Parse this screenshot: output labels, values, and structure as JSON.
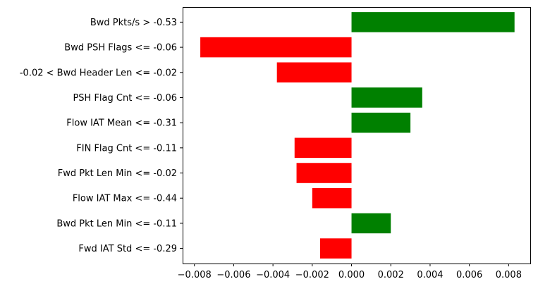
{
  "chart_data": {
    "type": "bar",
    "orientation": "horizontal",
    "categories": [
      "Bwd Pkts/s > -0.53",
      "Bwd PSH Flags <= -0.06",
      "-0.02 < Bwd Header Len <= -0.02",
      "PSH Flag Cnt <= -0.06",
      "Flow IAT Mean <= -0.31",
      "FIN Flag Cnt <= -0.11",
      "Fwd Pkt Len Min <= -0.02",
      "Flow IAT Max <= -0.44",
      "Bwd Pkt Len Min <= -0.11",
      "Fwd IAT Std <= -0.29"
    ],
    "values": [
      0.0083,
      -0.0077,
      -0.0038,
      0.0036,
      0.003,
      -0.0029,
      -0.0028,
      -0.002,
      0.002,
      -0.0016
    ],
    "xlim": [
      -0.0086,
      0.0091
    ],
    "xticks": [
      -0.008,
      -0.006,
      -0.004,
      -0.002,
      0.0,
      0.002,
      0.004,
      0.006,
      0.008
    ],
    "xtick_labels": [
      "−0.008",
      "−0.006",
      "−0.004",
      "−0.002",
      "0.000",
      "0.002",
      "0.004",
      "0.006",
      "0.008"
    ],
    "positive_color": "#008000",
    "negative_color": "#ff0000",
    "grid": false,
    "title": "",
    "xlabel": "",
    "ylabel": ""
  }
}
